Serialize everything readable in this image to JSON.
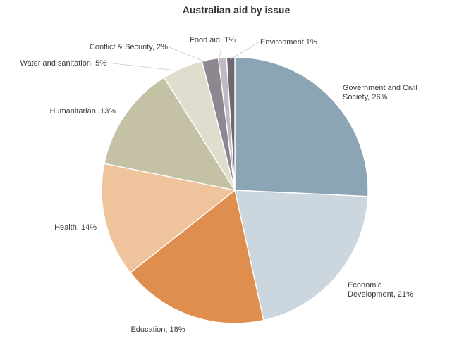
{
  "chart_data": {
    "type": "pie",
    "title": "Australian aid by issue",
    "slices": [
      {
        "label": "Government and Civil Society, 26%",
        "label_lines": [
          "Government and Civil",
          "Society, 26%"
        ],
        "value": 26,
        "color": "#8ca5b4"
      },
      {
        "label": "Economic Development, 21%",
        "label_lines": [
          "Economic",
          "Development, 21%"
        ],
        "value": 21,
        "color": "#ccd6de"
      },
      {
        "label": "Education, 18%",
        "label_lines": [
          "Education, 18%"
        ],
        "value": 18,
        "color": "#e08e4e"
      },
      {
        "label": "Health, 14%",
        "label_lines": [
          "Health, 14%"
        ],
        "value": 14,
        "color": "#efc39c"
      },
      {
        "label": "Humanitarian, 13%",
        "label_lines": [
          "Humanitarian, 13%"
        ],
        "value": 13,
        "color": "#c4c1a4"
      },
      {
        "label": "Water and sanitation, 5%",
        "label_lines": [
          "Water and sanitation, 5%"
        ],
        "value": 5,
        "color": "#e0ddcf"
      },
      {
        "label": "Conflict & Security, 2%",
        "label_lines": [
          "Conflict & Security, 2%"
        ],
        "value": 2,
        "color": "#8e8690"
      },
      {
        "label": "Food aid, 1%",
        "label_lines": [
          "Food aid, 1%"
        ],
        "value": 1,
        "color": "#c1bac2"
      },
      {
        "label": "Environment 1%",
        "label_lines": [
          "Environment 1%"
        ],
        "value": 1,
        "color": "#6c6a70"
      }
    ],
    "start_angle_deg": 0,
    "direction": "clockwise"
  }
}
